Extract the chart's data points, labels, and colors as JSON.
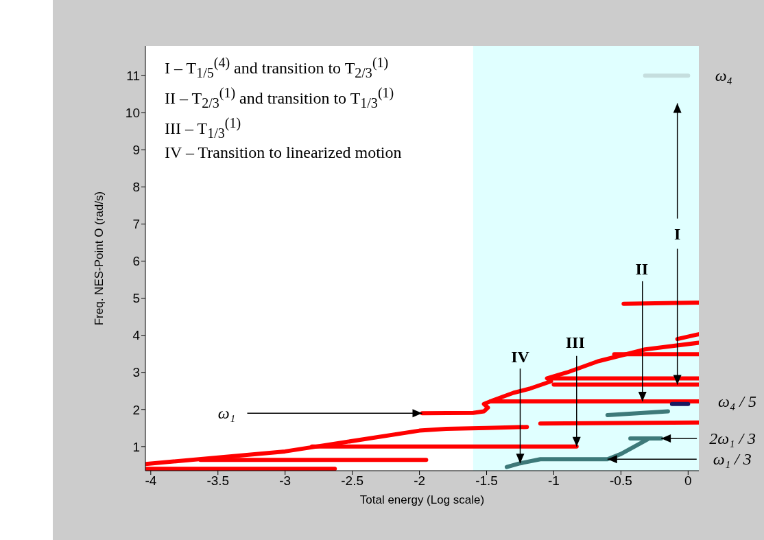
{
  "chart_data": {
    "type": "line",
    "xlabel": "Total energy (Log scale)",
    "ylabel": "Freq. NES-Point O (rad/s)",
    "xlim": [
      -4.04,
      0.08
    ],
    "ylim": [
      0.35,
      11.8
    ],
    "xticks": [
      -4,
      -3.5,
      -3,
      -2.5,
      -2,
      -1.5,
      -1,
      -0.5,
      0
    ],
    "yticks": [
      1,
      2,
      3,
      4,
      5,
      6,
      7,
      8,
      9,
      10,
      11
    ],
    "bands": [
      {
        "axis": "x",
        "from": -1.6,
        "to": 0.08,
        "color": "#e0ffff"
      }
    ],
    "series": [
      {
        "color": "#ff0000",
        "x": [
          -4.04,
          -2.63
        ],
        "values": [
          0.4,
          0.4
        ]
      },
      {
        "color": "#ff0000",
        "x": [
          -3.63,
          -1.95
        ],
        "values": [
          0.64,
          0.64
        ]
      },
      {
        "color": "#ff0000",
        "x": [
          -4.04,
          -3,
          -2,
          -1.8,
          -1.5,
          -1.2
        ],
        "values": [
          0.53,
          0.87,
          1.43,
          1.48,
          1.5,
          1.53
        ]
      },
      {
        "color": "#ff0000",
        "x": [
          -1.1,
          0.08
        ],
        "values": [
          1.62,
          1.65
        ]
      },
      {
        "color": "#ff0000",
        "x": [
          -2.8,
          -0.83
        ],
        "values": [
          1.0,
          1.0
        ]
      },
      {
        "color": "#ff0000",
        "x": [
          -1.98,
          -1.6,
          -1.52,
          -1.49,
          -1.52,
          -1.45,
          -1.3,
          -1.18,
          -1.02,
          -1.05,
          -0.9,
          -0.67,
          -0.32,
          0.08
        ],
        "values": [
          1.9,
          1.91,
          1.95,
          2.05,
          2.15,
          2.25,
          2.45,
          2.56,
          2.76,
          2.84,
          3.0,
          3.3,
          3.62,
          3.8
        ]
      },
      {
        "color": "#ff0000",
        "x": [
          -0.08,
          0.08
        ],
        "values": [
          3.9,
          4.03
        ]
      },
      {
        "color": "#ff0000",
        "x": [
          -1.03,
          0.08
        ],
        "values": [
          2.84,
          2.84
        ]
      },
      {
        "color": "#ff0000",
        "x": [
          -1.0,
          0.08
        ],
        "values": [
          2.67,
          2.67
        ]
      },
      {
        "color": "#ff0000",
        "x": [
          -1.47,
          0.08
        ],
        "values": [
          2.22,
          2.22
        ]
      },
      {
        "color": "#ff0000",
        "x": [
          -0.55,
          0.08
        ],
        "values": [
          3.49,
          3.49
        ]
      },
      {
        "color": "#ff0000",
        "x": [
          -0.48,
          0.08
        ],
        "values": [
          4.85,
          4.88
        ]
      },
      {
        "color": "#3d7a7a",
        "x": [
          -1.35,
          -1.25,
          -1.1,
          -0.6,
          -0.5,
          -0.4,
          -0.3
        ],
        "values": [
          0.45,
          0.55,
          0.66,
          0.66,
          0.8,
          1.0,
          1.2
        ]
      },
      {
        "color": "#3d7a7a",
        "x": [
          -0.43,
          -0.2
        ],
        "values": [
          1.22,
          1.22
        ]
      },
      {
        "color": "#3d7a7a",
        "x": [
          -0.6,
          -0.15
        ],
        "values": [
          1.85,
          1.95
        ]
      },
      {
        "color": "#1a1a60",
        "x": [
          -0.12,
          0
        ],
        "values": [
          2.15,
          2.15
        ]
      },
      {
        "color": "#c5dede",
        "x": [
          -0.32,
          0
        ],
        "values": [
          11,
          11
        ]
      }
    ],
    "annotations": [
      "I – T$_{1/5}$$^{(4)}$ and transition to T$_{2/3}$$^{(1)}$",
      "II – T$_{2/3}$$^{(1)}$ and transition to T$_{1/3}$$^{(1)}$",
      "III – T$_{1/3}$$^{(1)}$",
      "IV – Transition to linearized motion",
      {
        "text": "ω₁",
        "x": -1.98,
        "y": 1.9
      },
      {
        "text": "IV",
        "x": -1.25,
        "y": 0.55
      },
      {
        "text": "III",
        "x": -0.83,
        "y": 1.0
      },
      {
        "text": "II",
        "x": -0.34,
        "y": 2.22
      },
      {
        "text": "I",
        "x": -0.08,
        "y": 2.67
      },
      {
        "text": "2ω₁ / 3",
        "x": -0.2,
        "y": 1.22
      },
      {
        "text": "ω₁ / 3",
        "x": -0.6,
        "y": 0.66
      },
      {
        "text": "ω₄ / 5",
        "x": 0.08,
        "y": 2.22
      },
      {
        "text": "ω₄",
        "x": 0,
        "y": 11
      }
    ]
  }
}
